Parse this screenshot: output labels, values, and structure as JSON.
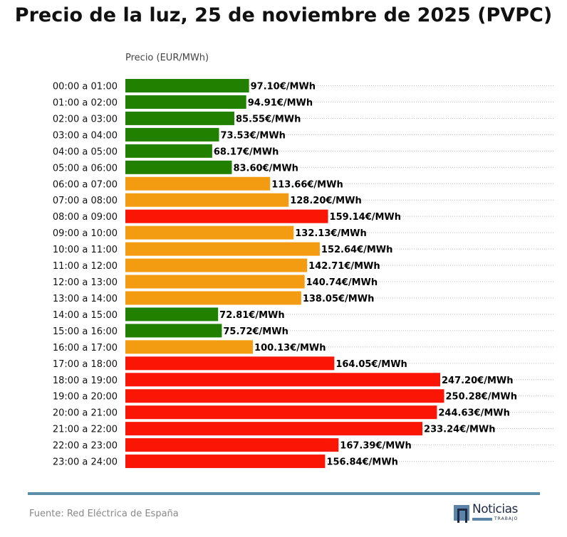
{
  "chart_data": {
    "type": "bar",
    "orientation": "horizontal",
    "title": "Precio de la luz, 25 de noviembre de 2025 (PVPC)",
    "xlabel": "Precio (EUR/MWh)",
    "categories": [
      "00:00 a 01:00",
      "01:00 a 02:00",
      "02:00 a 03:00",
      "03:00 a 04:00",
      "04:00 a 05:00",
      "05:00 a 06:00",
      "06:00 a 07:00",
      "07:00 a 08:00",
      "08:00 a 09:00",
      "09:00 a 10:00",
      "10:00 a 11:00",
      "11:00 a 12:00",
      "12:00 a 13:00",
      "13:00 a 14:00",
      "14:00 a 15:00",
      "15:00 a 16:00",
      "16:00 a 17:00",
      "17:00 a 18:00",
      "18:00 a 19:00",
      "19:00 a 20:00",
      "20:00 a 21:00",
      "21:00 a 22:00",
      "22:00 a 23:00",
      "23:00 a 24:00"
    ],
    "values": [
      97.1,
      94.91,
      85.55,
      73.53,
      68.17,
      83.6,
      113.66,
      128.2,
      159.14,
      132.13,
      152.64,
      142.71,
      140.74,
      138.05,
      72.81,
      75.72,
      100.13,
      164.05,
      247.2,
      250.28,
      244.63,
      233.24,
      167.39,
      156.84
    ],
    "levels": [
      "low",
      "low",
      "low",
      "low",
      "low",
      "low",
      "mid",
      "mid",
      "high",
      "mid",
      "mid",
      "mid",
      "mid",
      "mid",
      "low",
      "low",
      "mid",
      "high",
      "high",
      "high",
      "high",
      "high",
      "high",
      "high"
    ],
    "value_suffix": "€/MWh",
    "colors": {
      "low": "#228000",
      "mid": "#f39c12",
      "high": "#fa1505"
    },
    "grid": "horizontal dotted"
  },
  "footer": {
    "source": "Fuente: Red Eléctrica de España",
    "logo_text": "Noticias",
    "logo_sub": "TRABAJO"
  }
}
